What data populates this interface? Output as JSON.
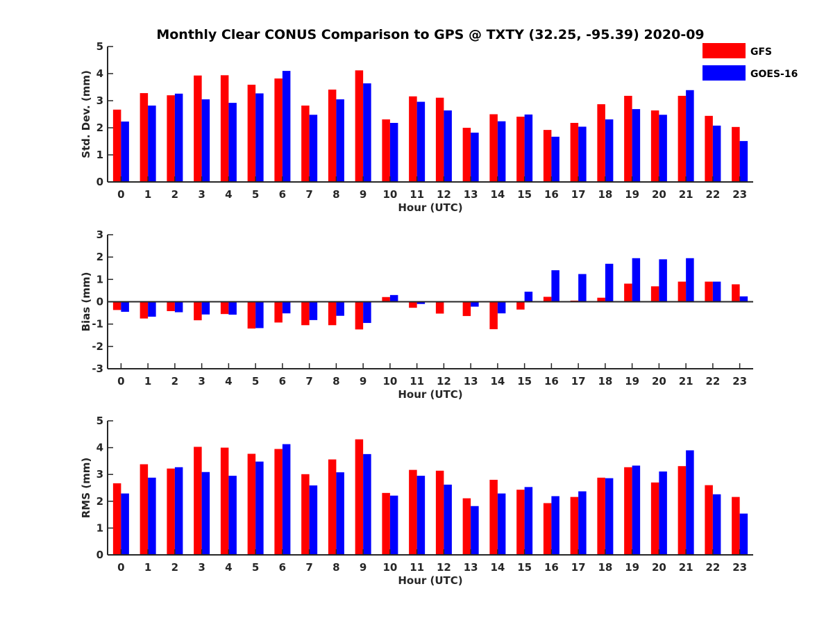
{
  "title": "Monthly Clear CONUS Comparison to GPS @ TXTY (32.25, -95.39) 2020-09",
  "colors": {
    "GFS": "#ff0000",
    "GOES-16": "#0000ff"
  },
  "legend": {
    "placement": "top-right",
    "entries": [
      "GFS",
      "GOES-16"
    ]
  },
  "chart_data": [
    {
      "type": "bar",
      "ylabel": "Std. Dev. (mm)",
      "xlabel": "Hour (UTC)",
      "ylim": [
        0,
        5
      ],
      "yticks": [
        0,
        1,
        2,
        3,
        4,
        5
      ],
      "categories": [
        "0",
        "1",
        "2",
        "3",
        "4",
        "5",
        "6",
        "7",
        "8",
        "9",
        "10",
        "11",
        "12",
        "13",
        "14",
        "15",
        "16",
        "17",
        "18",
        "19",
        "20",
        "21",
        "22",
        "23"
      ],
      "series": [
        {
          "name": "GFS",
          "values": [
            2.67,
            3.28,
            3.2,
            3.93,
            3.94,
            3.59,
            3.82,
            2.82,
            3.41,
            4.12,
            2.31,
            3.16,
            3.11,
            2.0,
            2.5,
            2.41,
            1.92,
            2.18,
            2.87,
            3.18,
            2.64,
            3.18,
            2.44,
            2.03
          ]
        },
        {
          "name": "GOES-16",
          "values": [
            2.23,
            2.82,
            3.26,
            3.05,
            2.92,
            3.27,
            4.1,
            2.48,
            3.05,
            3.64,
            2.18,
            2.96,
            2.64,
            1.82,
            2.24,
            2.49,
            1.67,
            2.04,
            2.31,
            2.69,
            2.48,
            3.39,
            2.08,
            1.51
          ]
        }
      ]
    },
    {
      "type": "bar",
      "ylabel": "Bias (mm)",
      "xlabel": "Hour (UTC)",
      "ylim": [
        -3,
        3
      ],
      "yticks": [
        -3,
        -2,
        -1,
        0,
        1,
        2,
        3
      ],
      "categories": [
        "0",
        "1",
        "2",
        "3",
        "4",
        "5",
        "6",
        "7",
        "8",
        "9",
        "10",
        "11",
        "12",
        "13",
        "14",
        "15",
        "16",
        "17",
        "18",
        "19",
        "20",
        "21",
        "22",
        "23"
      ],
      "series": [
        {
          "name": "GFS",
          "values": [
            -0.37,
            -0.75,
            -0.42,
            -0.83,
            -0.55,
            -1.2,
            -0.93,
            -1.05,
            -1.05,
            -1.24,
            0.21,
            -0.27,
            -0.53,
            -0.64,
            -1.23,
            -0.35,
            0.22,
            0.05,
            0.18,
            0.81,
            0.69,
            0.9,
            0.9,
            0.78
          ]
        },
        {
          "name": "GOES-16",
          "values": [
            -0.45,
            -0.67,
            -0.47,
            -0.57,
            -0.58,
            -1.18,
            -0.52,
            -0.82,
            -0.63,
            -0.95,
            0.3,
            -0.1,
            0.0,
            -0.22,
            -0.52,
            0.45,
            1.41,
            1.24,
            1.7,
            1.95,
            1.9,
            1.95,
            0.9,
            0.24
          ]
        }
      ]
    },
    {
      "type": "bar",
      "ylabel": "RMS (mm)",
      "xlabel": "Hour (UTC)",
      "ylim": [
        0,
        5
      ],
      "yticks": [
        0,
        1,
        2,
        3,
        4,
        5
      ],
      "categories": [
        "0",
        "1",
        "2",
        "3",
        "4",
        "5",
        "6",
        "7",
        "8",
        "9",
        "10",
        "11",
        "12",
        "13",
        "14",
        "15",
        "16",
        "17",
        "18",
        "19",
        "20",
        "21",
        "22",
        "23"
      ],
      "series": [
        {
          "name": "GFS",
          "values": [
            2.67,
            3.38,
            3.22,
            4.03,
            4.0,
            3.77,
            3.95,
            3.01,
            3.56,
            4.31,
            2.31,
            3.17,
            3.14,
            2.11,
            2.8,
            2.43,
            1.93,
            2.16,
            2.88,
            3.27,
            2.7,
            3.31,
            2.6,
            2.16
          ]
        },
        {
          "name": "GOES-16",
          "values": [
            2.29,
            2.88,
            3.27,
            3.09,
            2.95,
            3.48,
            4.13,
            2.59,
            3.08,
            3.76,
            2.21,
            2.95,
            2.62,
            1.82,
            2.29,
            2.53,
            2.19,
            2.37,
            2.86,
            3.33,
            3.11,
            3.9,
            2.26,
            1.54
          ]
        }
      ]
    }
  ]
}
